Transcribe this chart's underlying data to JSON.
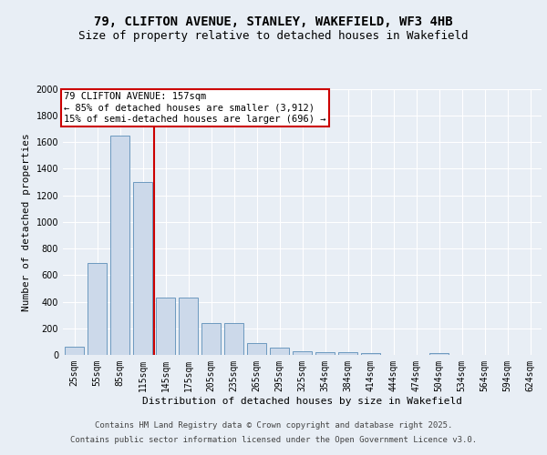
{
  "title": "79, CLIFTON AVENUE, STANLEY, WAKEFIELD, WF3 4HB",
  "subtitle": "Size of property relative to detached houses in Wakefield",
  "xlabel": "Distribution of detached houses by size in Wakefield",
  "ylabel": "Number of detached properties",
  "categories": [
    "25sqm",
    "55sqm",
    "85sqm",
    "115sqm",
    "145sqm",
    "175sqm",
    "205sqm",
    "235sqm",
    "265sqm",
    "295sqm",
    "325sqm",
    "354sqm",
    "384sqm",
    "414sqm",
    "444sqm",
    "474sqm",
    "504sqm",
    "534sqm",
    "564sqm",
    "594sqm",
    "624sqm"
  ],
  "values": [
    60,
    690,
    1650,
    1300,
    430,
    430,
    240,
    240,
    90,
    55,
    30,
    22,
    18,
    15,
    0,
    0,
    15,
    0,
    0,
    0,
    0
  ],
  "bar_color": "#ccd9ea",
  "bar_edge_color": "#5b8db8",
  "vline_x": 3.5,
  "vline_color": "#cc0000",
  "annotation_text": "79 CLIFTON AVENUE: 157sqm\n← 85% of detached houses are smaller (3,912)\n15% of semi-detached houses are larger (696) →",
  "annotation_box_facecolor": "#ffffff",
  "annotation_box_edgecolor": "#cc0000",
  "footer_line1": "Contains HM Land Registry data © Crown copyright and database right 2025.",
  "footer_line2": "Contains public sector information licensed under the Open Government Licence v3.0.",
  "ylim": [
    0,
    2000
  ],
  "yticks": [
    0,
    200,
    400,
    600,
    800,
    1000,
    1200,
    1400,
    1600,
    1800,
    2000
  ],
  "bg_color": "#e8eef5",
  "plot_bg_color": "#e8eef5",
  "grid_color": "#ffffff",
  "title_fontsize": 10,
  "subtitle_fontsize": 9,
  "axis_label_fontsize": 8,
  "tick_fontsize": 7,
  "annotation_fontsize": 7.5,
  "footer_fontsize": 6.5
}
